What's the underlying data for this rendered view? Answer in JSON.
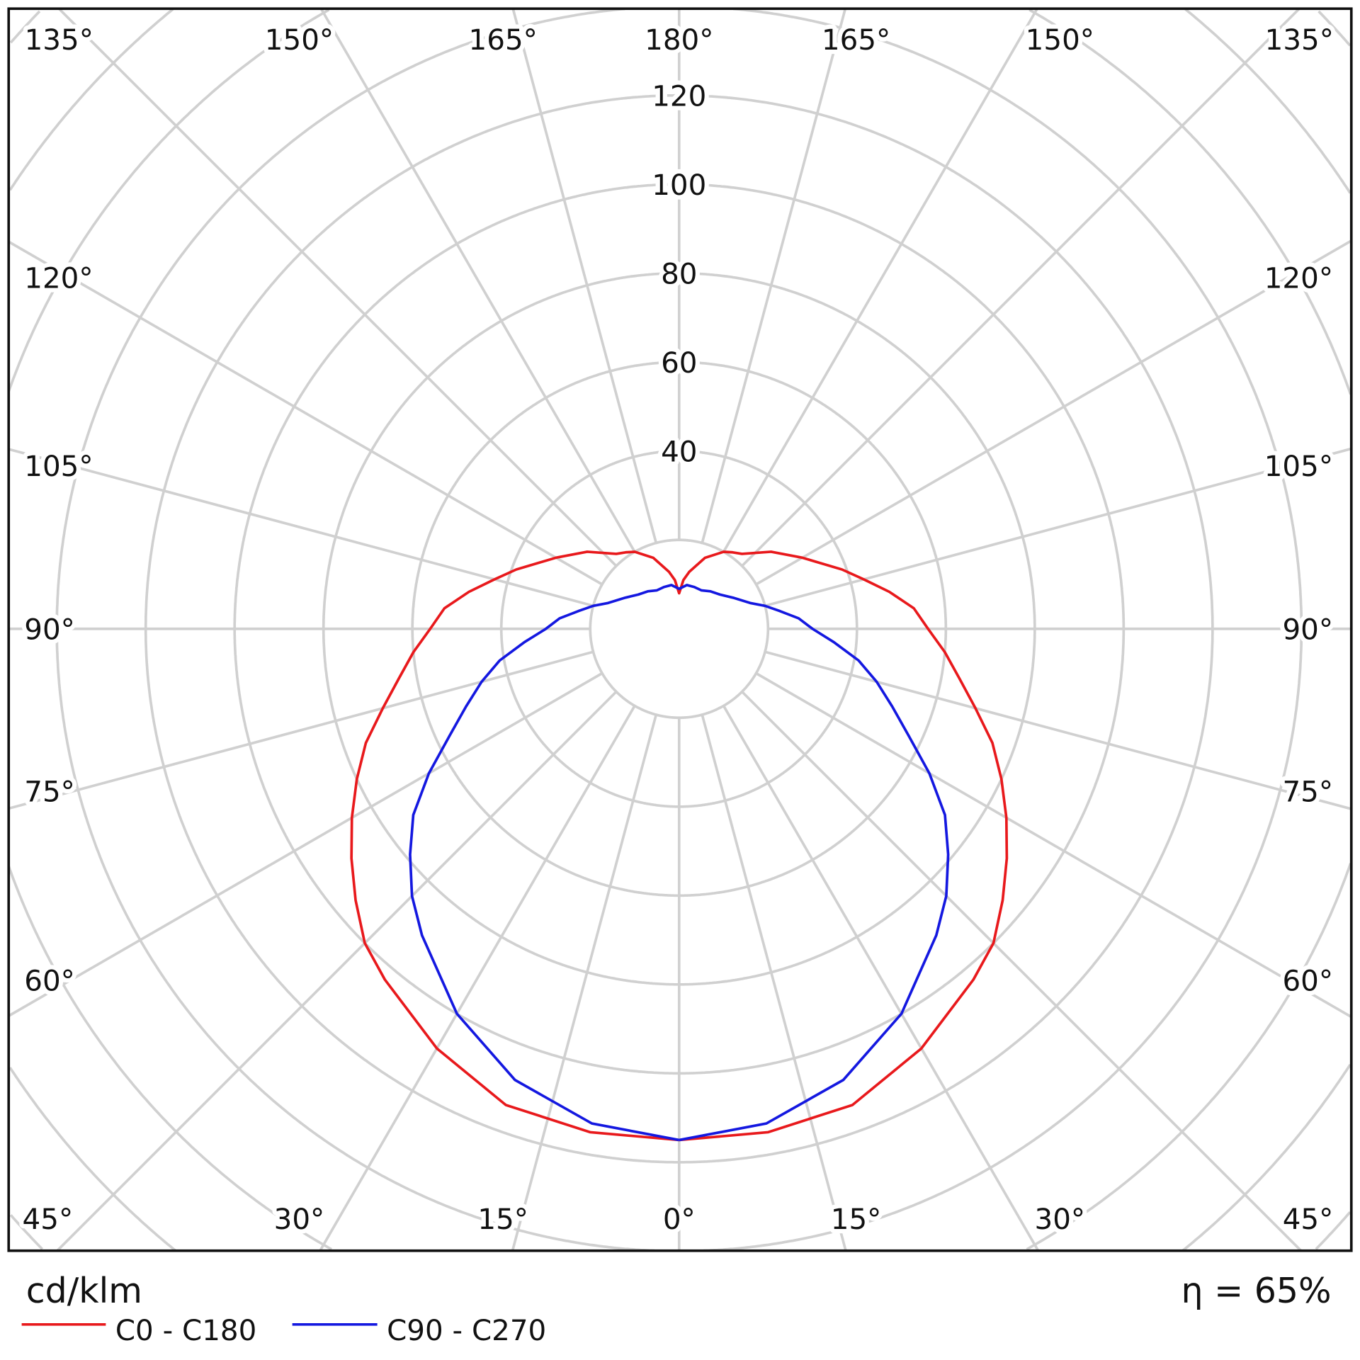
{
  "chart_data": {
    "type": "polar",
    "unit_label": "cd/klm",
    "efficiency_label": "η = 65%",
    "radial_ticks": [
      40,
      60,
      80,
      100,
      120
    ],
    "radial_tick_labels": [
      "40",
      "60",
      "80",
      "100",
      "120"
    ],
    "radial_range": [
      0,
      220
    ],
    "radial_grid_step": 20,
    "angular_grid_step_deg": 15,
    "grid": true,
    "angle_labels": {
      "top": [
        "135°",
        "150°",
        "165°",
        "180°",
        "165°",
        "150°",
        "135°"
      ],
      "left": [
        "120°",
        "105°",
        "90°",
        "75°",
        "60°"
      ],
      "right": [
        "120°",
        "105°",
        "90°",
        "75°",
        "60°"
      ],
      "bottom": [
        "45°",
        "30°",
        "15°",
        "0°",
        "15°",
        "30°",
        "45°"
      ]
    },
    "legend_placement": "bottom-left",
    "series": [
      {
        "name": "C0 - C180",
        "color": "#e8191c",
        "gamma_deg": [
          0,
          10,
          20,
          30,
          40,
          45,
          50,
          55,
          60,
          65,
          70,
          75,
          80,
          85,
          90,
          95,
          100,
          105,
          110,
          120,
          130,
          140,
          145,
          150,
          160,
          170,
          175,
          180
        ],
        "values": [
          115,
          115,
          114,
          109,
          103,
          100,
          95,
          90,
          85,
          80,
          75,
          69,
          64,
          60,
          56,
          53,
          48,
          43,
          39,
          32,
          27,
          22,
          21,
          20,
          17,
          13,
          11,
          8
        ]
      },
      {
        "name": "C90 - C270",
        "color": "#1418e0",
        "gamma_deg": [
          0,
          10,
          20,
          30,
          40,
          45,
          50,
          55,
          60,
          65,
          70,
          75,
          80,
          85,
          90,
          95,
          100,
          105,
          110,
          120,
          130,
          140,
          150,
          160,
          170,
          180
        ],
        "values": [
          115,
          113,
          108,
          100,
          90,
          85,
          79,
          73,
          65,
          57,
          51,
          46,
          41,
          35,
          30,
          27,
          23,
          20,
          17,
          14,
          12,
          11,
          10,
          10,
          10,
          9
        ]
      }
    ]
  }
}
